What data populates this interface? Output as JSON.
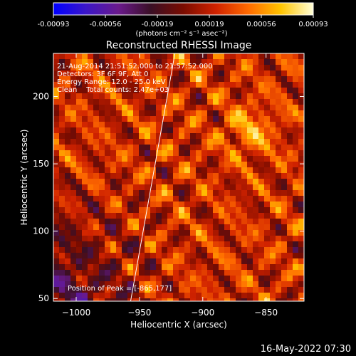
{
  "colorbar": {
    "ticks": [
      "-0.00093",
      "-0.00056",
      "-0.00019",
      "0.00019",
      "0.00056",
      "0.00093"
    ],
    "units": "(photons cm⁻² s⁻¹ asec⁻²)",
    "colors": [
      "#0000ff",
      "#3b16c8",
      "#6a1a8c",
      "#3a0f25",
      "#7a0c00",
      "#d02200",
      "#ff6a00",
      "#ffc400",
      "#ffffd8"
    ]
  },
  "chart_data": {
    "type": "heatmap",
    "title": "Reconstructed RHESSI Image",
    "xlabel": "Heliocentric X (arcsec)",
    "ylabel": "Heliocentric Y (arcsec)",
    "xlim": [
      -1018,
      -820
    ],
    "ylim": [
      48,
      232
    ],
    "xticks": [
      -1000,
      -950,
      -900,
      -850
    ],
    "yticks": [
      50,
      100,
      150,
      200
    ],
    "xtick_labels": [
      "−1000",
      "−950",
      "−900",
      "−850"
    ],
    "ytick_labels": [
      "50",
      "100",
      "150",
      "200"
    ],
    "limb_line": [
      [
        -922,
        232
      ],
      [
        -957,
        48
      ]
    ],
    "peak": [
      -865,
      177
    ],
    "annotations": {
      "time": "21-Aug-2014 21:51:52.000 to 21:57:52.000",
      "detectors": "Detectors: 3F 6F 9F, Att 0",
      "energy": "Energy Range: 12.0 - 25.0 keV",
      "clean": "Clean    Total counts: 2.47e+03",
      "peak": "Position of Peak = [-865,177]"
    }
  },
  "footer": {
    "timestamp": "16-May-2022 07:30"
  }
}
